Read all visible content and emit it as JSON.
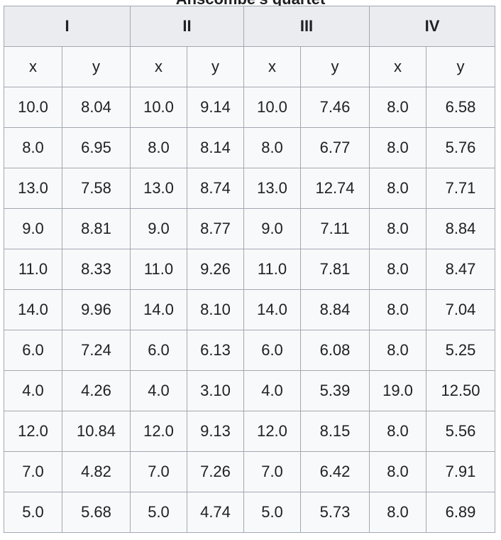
{
  "caption": "Anscombe's quartet",
  "groups": [
    "I",
    "II",
    "III",
    "IV"
  ],
  "subheaders": [
    "x",
    "y",
    "x",
    "y",
    "x",
    "y",
    "x",
    "y"
  ],
  "rows": [
    [
      "10.0",
      "8.04",
      "10.0",
      "9.14",
      "10.0",
      "7.46",
      "8.0",
      "6.58"
    ],
    [
      "8.0",
      "6.95",
      "8.0",
      "8.14",
      "8.0",
      "6.77",
      "8.0",
      "5.76"
    ],
    [
      "13.0",
      "7.58",
      "13.0",
      "8.74",
      "13.0",
      "12.74",
      "8.0",
      "7.71"
    ],
    [
      "9.0",
      "8.81",
      "9.0",
      "8.77",
      "9.0",
      "7.11",
      "8.0",
      "8.84"
    ],
    [
      "11.0",
      "8.33",
      "11.0",
      "9.26",
      "11.0",
      "7.81",
      "8.0",
      "8.47"
    ],
    [
      "14.0",
      "9.96",
      "14.0",
      "8.10",
      "14.0",
      "8.84",
      "8.0",
      "7.04"
    ],
    [
      "6.0",
      "7.24",
      "6.0",
      "6.13",
      "6.0",
      "6.08",
      "8.0",
      "5.25"
    ],
    [
      "4.0",
      "4.26",
      "4.0",
      "3.10",
      "4.0",
      "5.39",
      "19.0",
      "12.50"
    ],
    [
      "12.0",
      "10.84",
      "12.0",
      "9.13",
      "12.0",
      "8.15",
      "8.0",
      "5.56"
    ],
    [
      "7.0",
      "4.82",
      "7.0",
      "7.26",
      "7.0",
      "6.42",
      "8.0",
      "7.91"
    ],
    [
      "5.0",
      "5.68",
      "5.0",
      "4.74",
      "5.0",
      "5.73",
      "8.0",
      "6.89"
    ]
  ]
}
